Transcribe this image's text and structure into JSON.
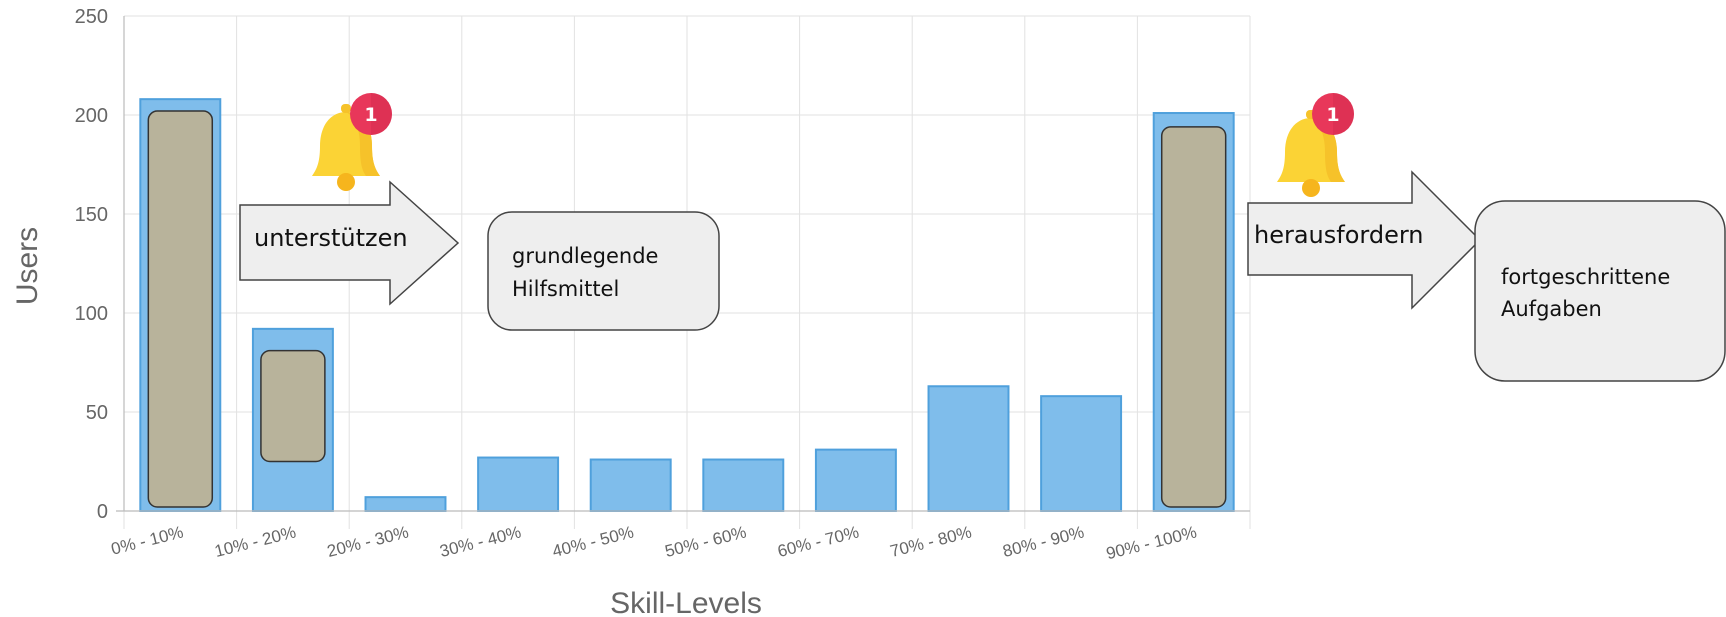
{
  "chart_data": {
    "type": "bar",
    "categories": [
      "0% - 10%",
      "10% - 20%",
      "20% - 30%",
      "30% - 40%",
      "40% - 50%",
      "50% - 60%",
      "60% - 70%",
      "70% - 80%",
      "80% - 90%",
      "90% - 100%"
    ],
    "values": [
      208,
      92,
      7,
      27,
      26,
      26,
      31,
      63,
      58,
      201
    ],
    "xlabel": "Skill-Levels",
    "ylabel": "Users",
    "ylim": [
      0,
      250
    ],
    "yticks": [
      0,
      50,
      100,
      150,
      200,
      250
    ],
    "grid": true,
    "colors": {
      "bar_fill": "#7fbdeb",
      "bar_stroke": "#4fa0dc",
      "highlight_fill": "#b8b39b",
      "highlight_stroke": "#333333",
      "grid": "#e2e2e2"
    }
  },
  "highlights": [
    {
      "category_index": 0,
      "value": 202
    },
    {
      "category_index": 1,
      "value": 81
    },
    {
      "category_index": 9,
      "value": 194
    }
  ],
  "annotations": {
    "left_arrow": "unterstützen",
    "left_box": [
      "grundlegende",
      "Hilfsmittel"
    ],
    "right_arrow": "herausfordern",
    "right_box": [
      "fortgeschrittene",
      "Aufgaben"
    ],
    "left_badge": "1",
    "right_badge": "1",
    "bell_icon": "bell-notification-icon",
    "badge_color": "#e8375a",
    "bell_color": "#fbd335"
  }
}
